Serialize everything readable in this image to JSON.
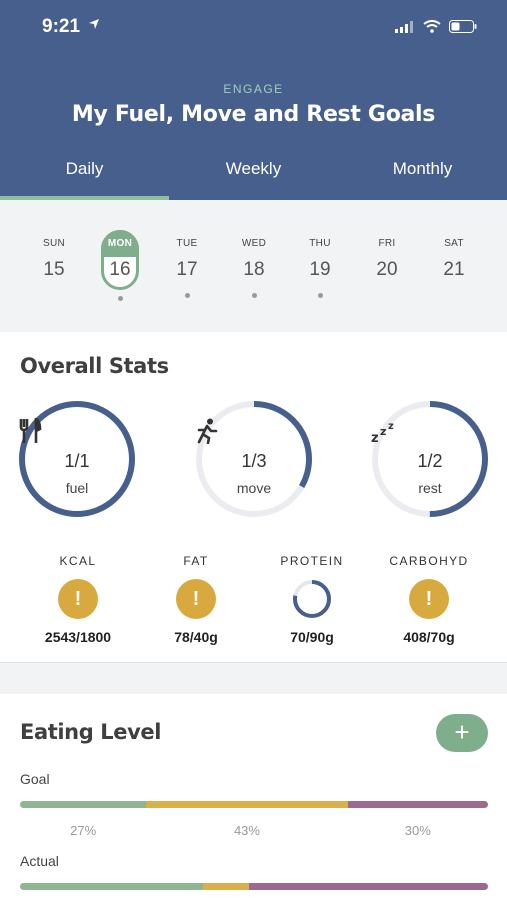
{
  "status": {
    "time": "9:21"
  },
  "header": {
    "eyebrow": "ENGAGE",
    "title": "My Fuel, Move and Rest Goals"
  },
  "tabs": [
    {
      "label": "Daily",
      "active": true
    },
    {
      "label": "Weekly",
      "active": false
    },
    {
      "label": "Monthly",
      "active": false
    }
  ],
  "week": [
    {
      "name": "SUN",
      "date": "15",
      "dot": false
    },
    {
      "name": "MON",
      "date": "16",
      "dot": true,
      "selected": true
    },
    {
      "name": "TUE",
      "date": "17",
      "dot": true
    },
    {
      "name": "WED",
      "date": "18",
      "dot": true
    },
    {
      "name": "THU",
      "date": "19",
      "dot": true
    },
    {
      "name": "FRI",
      "date": "20",
      "dot": false
    },
    {
      "name": "SAT",
      "date": "21",
      "dot": false
    }
  ],
  "overall": {
    "title": "Overall Stats",
    "rings": [
      {
        "icon": "fork-knife-icon",
        "value": "1/1",
        "label": "fuel",
        "progress": 1.0
      },
      {
        "icon": "runner-icon",
        "value": "1/3",
        "label": "move",
        "progress": 0.333
      },
      {
        "icon": "sleep-zzz-icon",
        "value": "1/2",
        "label": "rest",
        "progress": 0.5
      }
    ],
    "nutrients": [
      {
        "label": "KCAL",
        "value": "2543/1800",
        "status": "warning"
      },
      {
        "label": "FAT",
        "value": "78/40g",
        "status": "warning"
      },
      {
        "label": "PROTEIN",
        "value": "70/90g",
        "status": "progress",
        "progress": 0.78
      },
      {
        "label": "CARBOHYD",
        "value": "408/70g",
        "status": "warning"
      }
    ]
  },
  "eating": {
    "title": "Eating Level",
    "add_label": "+",
    "goal_label": "Goal",
    "actual_label": "Actual",
    "goal": [
      {
        "pct": 27,
        "text": "27%",
        "color": "#8fb592"
      },
      {
        "pct": 43,
        "text": "43%",
        "color": "#d9b04c"
      },
      {
        "pct": 30,
        "text": "30%",
        "color": "#9c6a8e"
      }
    ],
    "actual": [
      {
        "pct": 39,
        "color": "#8fb592"
      },
      {
        "pct": 10,
        "color": "#d9b04c"
      },
      {
        "pct": 51,
        "color": "#9c6a8e"
      }
    ]
  },
  "colors": {
    "header": "#475f8c",
    "ring": "#475f8c",
    "accent": "#7fae8c",
    "warning": "#d8a93f"
  }
}
